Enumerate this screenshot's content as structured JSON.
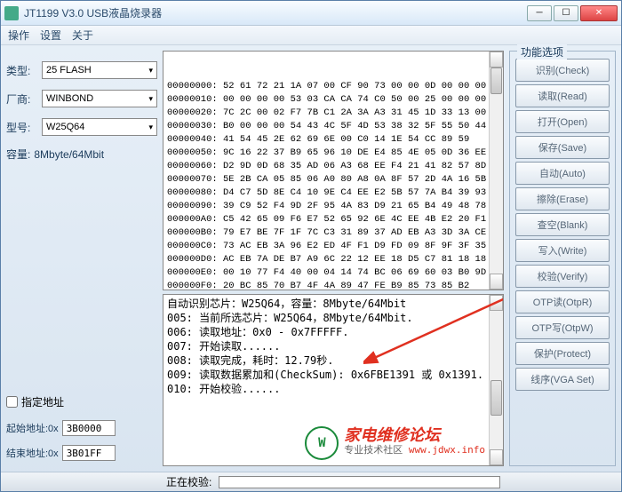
{
  "window": {
    "title": "JT1199 V3.0 USB液晶烧录器",
    "min": "─",
    "max": "☐",
    "close": "✕"
  },
  "menu": {
    "m1": "操作",
    "m2": "设置",
    "m3": "关于"
  },
  "left": {
    "type_label": "类型:",
    "type_value": "25 FLASH",
    "vendor_label": "厂商:",
    "vendor_value": "WINBOND",
    "model_label": "型号:",
    "model_value": "W25Q64",
    "cap_label": "容量:",
    "cap_value": "8Mbyte/64Mbit",
    "addr_check": "指定地址",
    "start_label": "起始地址:0x",
    "start_value": "3B0000",
    "end_label": "结束地址:0x",
    "end_value": "3B01FF"
  },
  "hex": {
    "lines": [
      "00000000: 52 61 72 21 1A 07 00 CF 90 73 00 00 0D 00 00 00",
      "00000010: 00 00 00 00 53 03 CA CA 74 C0 50 00 25 00 00 00",
      "00000020: 7C 2C 00 02 F7 7B C1 2A 3A A3 31 45 1D 33 13 00",
      "00000030: B0 00 00 00 54 43 4C 5F 4D 53 38 32 5F 55 50 44",
      "00000040: 41 54 45 2E 62 69 6E 00 C0 14 1E 54 CC 89 59",
      "00000050: 9C 16 22 37 B9 65 96 10 DE E4 85 4E 05 0D 36 EE",
      "00000060: D2 9D 0D 68 35 AD 06 A3 68 EE F4 21 41 82 57 8D",
      "00000070: 5E 2B CA 05 85 06 A0 80 A8 0A 8F 57 2D 4A 16 5B",
      "00000080: D4 C7 5D 8E C4 10 9E C4 EE E2 5B 57 7A B4 39 93",
      "00000090: 39 C9 52 F4 9D 2F 95 4A 83 D9 21 65 B4 49 48 78",
      "000000A0: C5 42 65 09 F6 E7 52 65 92 6E 4C EE 4B E2 20 F1",
      "000000B0: 79 E7 BE 7F 1F 7C C3 31 89 37 AD EB A3 3D 3A CE",
      "000000C0: 73 AC EB 3A 96 E2 ED 4F F1 D9 FD 09 8F 9F 3F 35",
      "000000D0: AC EB 7A DE B7 A9 6C 22 12 EE 18 D5 C7 81 18 18",
      "000000E0: 00 10 77 F4 40 00 04 14 74 BC 06 69 60 03 B0 9D",
      "000000F0: 20 BC 85 70 B7 4F 4A 89 47 FE B9 85 73 85 B2"
    ]
  },
  "log": {
    "lines": [
      "自动识别芯片：W25Q64，容量：8Mbyte/64Mbit",
      "",
      "005: 当前所选芯片：W25Q64，8Mbyte/64Mbit.",
      "006: 读取地址：0x0 - 0x7FFFFF.",
      "007: 开始读取......",
      "008: 读取完成，耗时：12.79秒.",
      "009: 读取数据累加和(CheckSum): 0x6FBE1391 或 0x1391.",
      "010: 开始校验......"
    ]
  },
  "buttons": {
    "group_title": "功能选项",
    "b1": "识别(Check)",
    "b2": "读取(Read)",
    "b3": "打开(Open)",
    "b4": "保存(Save)",
    "b5": "自动(Auto)",
    "b6": "擦除(Erase)",
    "b7": "查空(Blank)",
    "b8": "写入(Write)",
    "b9": "校验(Verify)",
    "b10": "OTP读(OtpR)",
    "b11": "OTP写(OtpW)",
    "b12": "保护(Protect)",
    "b13": "线序(VGA Set)"
  },
  "status": {
    "label": "正在校验:"
  },
  "watermark": {
    "title": "家电维修论坛",
    "sub_prefix": "专业技术社区 ",
    "url": "www.jdwx.info",
    "logo": "W"
  },
  "arrow": {
    "color": "#e03020"
  }
}
